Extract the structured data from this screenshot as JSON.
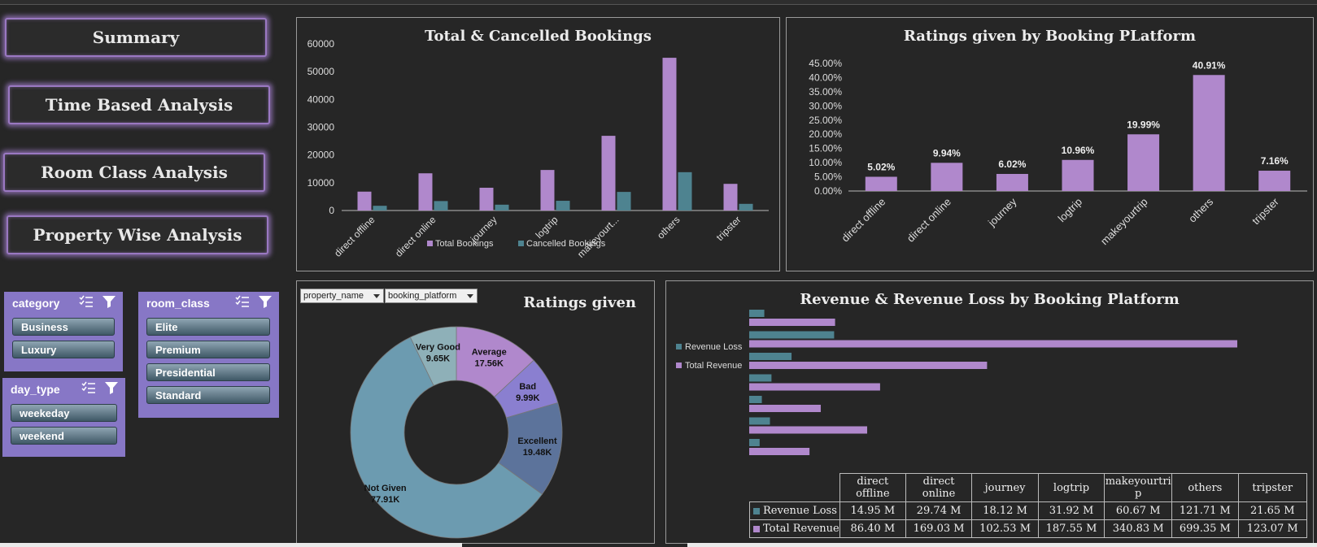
{
  "nav": {
    "summary": "Summary",
    "time_based": "Time Based Analysis",
    "room_class": "Room Class Analysis",
    "property_wise": "Property Wise Analysis"
  },
  "colors": {
    "purple": "#b088cc",
    "teal": "#4e8390",
    "slicer_bg": "#8777c6",
    "donut_teal": "#6c9bb0"
  },
  "slicers": {
    "category": {
      "title": "category",
      "items": [
        "Business",
        "Luxury"
      ]
    },
    "room_class": {
      "title": "room_class",
      "items": [
        "Elite",
        "Premium",
        "Presidential",
        "Standard"
      ]
    },
    "day_type": {
      "title": "day_type",
      "items": [
        "weekeday",
        "weekend"
      ]
    }
  },
  "filters": {
    "property_name": "property_name",
    "booking_platform": "booking_platform"
  },
  "chart_data": [
    {
      "id": "bookings",
      "type": "bar",
      "title": "Total & Cancelled Bookings",
      "categories": [
        "direct offline",
        "direct online",
        "journey",
        "logtrip",
        "makeyourt...",
        "others",
        "tripster"
      ],
      "series": [
        {
          "name": "Total Bookings",
          "values": [
            6800,
            13400,
            8200,
            14600,
            26900,
            55000,
            9600
          ]
        },
        {
          "name": "Cancelled Bookings",
          "values": [
            1700,
            3400,
            2100,
            3500,
            6700,
            13800,
            2400
          ]
        }
      ],
      "yticks": [
        "0",
        "10000",
        "20000",
        "30000",
        "40000",
        "50000",
        "60000"
      ],
      "ylim": [
        0,
        60000
      ],
      "legend": "bottom"
    },
    {
      "id": "ratings_platform",
      "type": "bar",
      "title": "Ratings given by Booking PLatform",
      "categories": [
        "direct offline",
        "direct online",
        "journey",
        "logtrip",
        "makeyourtrip",
        "others",
        "tripster"
      ],
      "values": [
        5.02,
        9.94,
        6.02,
        10.96,
        19.99,
        40.91,
        7.16
      ],
      "labels": [
        "5.02%",
        "9.94%",
        "6.02%",
        "10.96%",
        "19.99%",
        "40.91%",
        "7.16%"
      ],
      "yticks": [
        "0.00%",
        "5.00%",
        "10.00%",
        "15.00%",
        "20.00%",
        "25.00%",
        "30.00%",
        "35.00%",
        "40.00%",
        "45.00%"
      ],
      "ylim": [
        0,
        45
      ]
    },
    {
      "id": "ratings_donut",
      "type": "pie",
      "title": "Ratings given",
      "slices": [
        {
          "name": "Average",
          "value": 17.56,
          "label": "17.56K",
          "color": "#b088cc"
        },
        {
          "name": "Bad",
          "value": 9.99,
          "label": "9.99K",
          "color": "#8a7fd0"
        },
        {
          "name": "Excellent",
          "value": 19.48,
          "label": "19.48K",
          "color": "#5c739b"
        },
        {
          "name": "Not Given",
          "value": 77.91,
          "label": "77.91K",
          "color": "#6c9bb0"
        },
        {
          "name": "Very Good",
          "value": 9.65,
          "label": "9.65K",
          "color": "#8eb0b8"
        }
      ]
    },
    {
      "id": "revenue",
      "type": "bar",
      "orientation": "horizontal",
      "title": "Revenue & Revenue Loss by Booking Platform",
      "categories": [
        "direct offline",
        "direct online",
        "journey",
        "logtrip",
        "makeyourtri p",
        "others",
        "tripster"
      ],
      "series": [
        {
          "name": "Revenue Loss",
          "values": [
            14.95,
            29.74,
            18.12,
            31.92,
            60.67,
            121.71,
            21.65
          ],
          "labels": [
            "14.95 M",
            "29.74 M",
            "18.12 M",
            "31.92 M",
            "60.67 M",
            "121.71 M",
            "21.65 M"
          ]
        },
        {
          "name": "Total Revenue",
          "values": [
            86.4,
            169.03,
            102.53,
            187.55,
            340.83,
            699.35,
            123.07
          ],
          "labels": [
            "86.40 M",
            "169.03 M",
            "102.53 M",
            "187.55 M",
            "340.83 M",
            "699.35 M",
            "123.07 M"
          ]
        }
      ],
      "legend": "left"
    }
  ]
}
